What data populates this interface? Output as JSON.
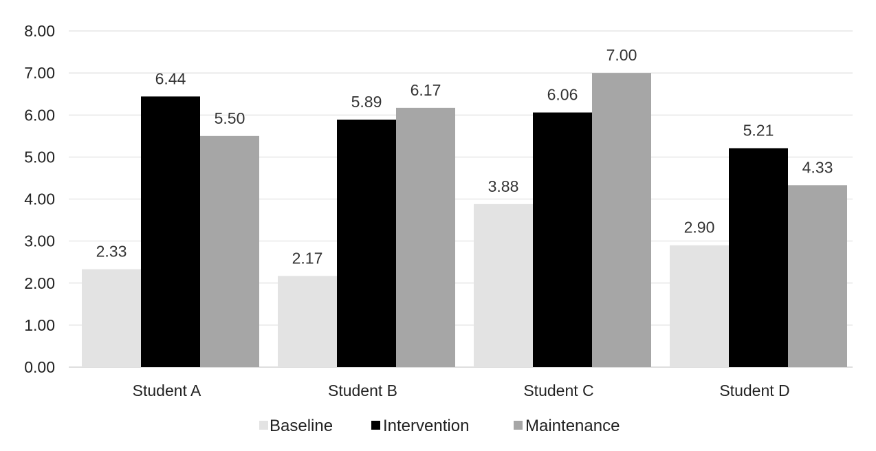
{
  "chart_data": {
    "type": "bar",
    "categories": [
      "Student A",
      "Student B",
      "Student C",
      "Student D"
    ],
    "series": [
      {
        "name": "Baseline",
        "values": [
          2.33,
          2.17,
          3.88,
          2.9
        ],
        "color": "#e3e3e3"
      },
      {
        "name": "Intervention",
        "values": [
          6.44,
          5.89,
          6.06,
          5.21
        ],
        "color": "#000000"
      },
      {
        "name": "Maintenance",
        "values": [
          5.5,
          6.17,
          7.0,
          4.33
        ],
        "color": "#a6a6a6"
      }
    ],
    "data_labels": [
      [
        "2.33",
        "6.44",
        "5.50"
      ],
      [
        "2.17",
        "5.89",
        "6.17"
      ],
      [
        "3.88",
        "6.06",
        "7.00"
      ],
      [
        "2.90",
        "5.21",
        "4.33"
      ]
    ],
    "ylim": [
      0,
      8
    ],
    "yticks": [
      "0.00",
      "1.00",
      "2.00",
      "3.00",
      "4.00",
      "5.00",
      "6.00",
      "7.00",
      "8.00"
    ],
    "grid": true,
    "grid_color": "#d9d9d9",
    "legend_position": "bottom",
    "title": "",
    "xlabel": "",
    "ylabel": ""
  }
}
